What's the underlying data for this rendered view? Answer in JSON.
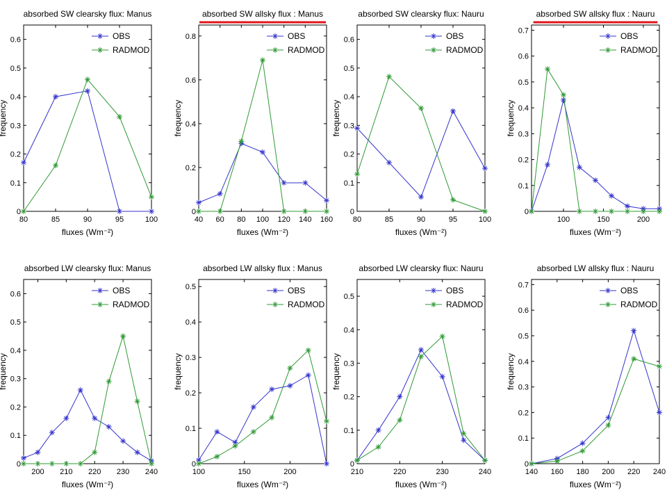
{
  "figure": {
    "background": "#ffffff",
    "highlight_color": "#e0141e"
  },
  "series_colors": {
    "OBS": "#3333cc",
    "RADMOD": "#2e9933"
  },
  "chart_data": [
    {
      "type": "line",
      "title": "absorbed SW clearsky flux: Manus",
      "title_highlighted": false,
      "xlabel": "fluxes (Wm⁻²)",
      "ylabel": "frequency",
      "xlim": [
        80,
        100
      ],
      "ylim": [
        0,
        0.65
      ],
      "xticks": [
        80,
        85,
        90,
        95,
        100
      ],
      "yticks": [
        0,
        0.1,
        0.2,
        0.3,
        0.4,
        0.5,
        0.6
      ],
      "tick_labels_x": [
        "80",
        "85",
        "90",
        "95",
        "100"
      ],
      "tick_labels_y": [
        "0",
        "0.1",
        "0.2",
        "0.3",
        "0.4",
        "0.5",
        "0.6"
      ],
      "legend": "top-right",
      "series": [
        {
          "name": "OBS",
          "x": [
            80,
            85,
            90,
            95,
            100
          ],
          "y": [
            0.17,
            0.4,
            0.42,
            0.0,
            0.0
          ]
        },
        {
          "name": "RADMOD",
          "x": [
            80,
            85,
            90,
            95,
            100
          ],
          "y": [
            0.0,
            0.16,
            0.46,
            0.33,
            0.05
          ]
        }
      ]
    },
    {
      "type": "line",
      "title": "absorbed SW allsky flux : Manus",
      "title_highlighted": true,
      "xlabel": "fluxes (Wm⁻²)",
      "ylabel": "frequency",
      "xlim": [
        40,
        160
      ],
      "ylim": [
        0,
        0.85
      ],
      "xticks": [
        40,
        60,
        80,
        100,
        120,
        140,
        160
      ],
      "yticks": [
        0,
        0.2,
        0.4,
        0.6,
        0.8
      ],
      "tick_labels_x": [
        "40",
        "60",
        "80",
        "100",
        "120",
        "140",
        "160"
      ],
      "tick_labels_y": [
        "0",
        "0.2",
        "0.4",
        "0.6",
        "0.8"
      ],
      "legend": "top-right",
      "series": [
        {
          "name": "OBS",
          "x": [
            40,
            60,
            80,
            100,
            120,
            140,
            160
          ],
          "y": [
            0.04,
            0.08,
            0.31,
            0.27,
            0.13,
            0.13,
            0.05
          ]
        },
        {
          "name": "RADMOD",
          "x": [
            40,
            60,
            80,
            100,
            120,
            140,
            160
          ],
          "y": [
            0.0,
            0.0,
            0.32,
            0.69,
            0.0,
            0.0,
            0.0
          ]
        }
      ]
    },
    {
      "type": "line",
      "title": "absorbed SW clearsky flux: Nauru",
      "title_highlighted": false,
      "xlabel": "fluxes (Wm⁻²)",
      "ylabel": "frequency",
      "xlim": [
        80,
        100
      ],
      "ylim": [
        0,
        0.65
      ],
      "xticks": [
        80,
        85,
        90,
        95,
        100
      ],
      "yticks": [
        0,
        0.1,
        0.2,
        0.3,
        0.4,
        0.5,
        0.6
      ],
      "tick_labels_x": [
        "80",
        "85",
        "90",
        "95",
        "100"
      ],
      "tick_labels_y": [
        "0",
        "0.1",
        "0.2",
        "0.3",
        "0.4",
        "0.5",
        "0.6"
      ],
      "legend": "top-right",
      "series": [
        {
          "name": "OBS",
          "x": [
            80,
            85,
            90,
            95,
            100
          ],
          "y": [
            0.29,
            0.17,
            0.05,
            0.35,
            0.15
          ]
        },
        {
          "name": "RADMOD",
          "x": [
            80,
            85,
            90,
            95,
            100
          ],
          "y": [
            0.13,
            0.47,
            0.36,
            0.04,
            0.0
          ]
        }
      ]
    },
    {
      "type": "line",
      "title": "absorbed SW allsky flux : Nauru",
      "title_highlighted": true,
      "xlabel": "fluxes (Wm⁻²)",
      "ylabel": "frequency",
      "xlim": [
        60,
        220
      ],
      "ylim": [
        0,
        0.72
      ],
      "xticks": [
        100,
        150,
        200
      ],
      "yticks": [
        0,
        0.1,
        0.2,
        0.3,
        0.4,
        0.5,
        0.6,
        0.7
      ],
      "tick_labels_x": [
        "100",
        "150",
        "200"
      ],
      "tick_labels_y": [
        "0",
        "0.1",
        "0.2",
        "0.3",
        "0.4",
        "0.5",
        "0.6",
        "0.7"
      ],
      "legend": "top-right",
      "series": [
        {
          "name": "OBS",
          "x": [
            60,
            80,
            100,
            120,
            140,
            160,
            180,
            200,
            220
          ],
          "y": [
            0.0,
            0.18,
            0.43,
            0.17,
            0.12,
            0.06,
            0.02,
            0.01,
            0.01
          ]
        },
        {
          "name": "RADMOD",
          "x": [
            60,
            80,
            100,
            120,
            140,
            160,
            180,
            200,
            220
          ],
          "y": [
            0.0,
            0.55,
            0.45,
            0.0,
            0.0,
            0.0,
            0.0,
            0.0,
            0.0
          ]
        }
      ]
    },
    {
      "type": "line",
      "title": "absorbed LW clearsky flux: Manus",
      "title_highlighted": false,
      "xlabel": "fluxes (Wm⁻²)",
      "ylabel": "frequency",
      "xlim": [
        195,
        240
      ],
      "ylim": [
        0,
        0.65
      ],
      "xticks": [
        200,
        210,
        220,
        230,
        240
      ],
      "yticks": [
        0,
        0.1,
        0.2,
        0.3,
        0.4,
        0.5,
        0.6
      ],
      "tick_labels_x": [
        "200",
        "210",
        "220",
        "230",
        "240"
      ],
      "tick_labels_y": [
        "0",
        "0.1",
        "0.2",
        "0.3",
        "0.4",
        "0.5",
        "0.6"
      ],
      "legend": "top-right",
      "series": [
        {
          "name": "OBS",
          "x": [
            195,
            200,
            205,
            210,
            215,
            220,
            225,
            230,
            235,
            240
          ],
          "y": [
            0.02,
            0.04,
            0.11,
            0.16,
            0.26,
            0.16,
            0.13,
            0.08,
            0.04,
            0.01
          ]
        },
        {
          "name": "RADMOD",
          "x": [
            195,
            200,
            205,
            210,
            215,
            220,
            225,
            230,
            235,
            240
          ],
          "y": [
            0.0,
            0.0,
            0.0,
            0.0,
            0.0,
            0.04,
            0.29,
            0.45,
            0.22,
            0.0
          ]
        }
      ]
    },
    {
      "type": "line",
      "title": "absorbed LW allsky flux : Manus",
      "title_highlighted": false,
      "xlabel": "fluxes (Wm⁻²)",
      "ylabel": "frequency",
      "xlim": [
        100,
        240
      ],
      "ylim": [
        0,
        0.52
      ],
      "xticks": [
        100,
        150,
        200
      ],
      "yticks": [
        0,
        0.1,
        0.2,
        0.3,
        0.4,
        0.5
      ],
      "tick_labels_x": [
        "100",
        "150",
        "200"
      ],
      "tick_labels_y": [
        "0",
        "0.1",
        "0.2",
        "0.3",
        "0.4",
        "0.5"
      ],
      "legend": "top-right",
      "series": [
        {
          "name": "OBS",
          "x": [
            100,
            120,
            140,
            160,
            180,
            200,
            220,
            240
          ],
          "y": [
            0.01,
            0.09,
            0.06,
            0.16,
            0.21,
            0.22,
            0.25,
            0.0
          ]
        },
        {
          "name": "RADMOD",
          "x": [
            100,
            120,
            140,
            160,
            180,
            200,
            220,
            240
          ],
          "y": [
            0.0,
            0.02,
            0.05,
            0.09,
            0.13,
            0.27,
            0.32,
            0.12
          ]
        }
      ]
    },
    {
      "type": "line",
      "title": "absorbed LW clearsky flux: Nauru",
      "title_highlighted": false,
      "xlabel": "fluxes (Wm⁻²)",
      "ylabel": "frequency",
      "xlim": [
        210,
        240
      ],
      "ylim": [
        0,
        0.55
      ],
      "xticks": [
        210,
        220,
        230,
        240
      ],
      "yticks": [
        0,
        0.1,
        0.2,
        0.3,
        0.4,
        0.5
      ],
      "tick_labels_x": [
        "210",
        "220",
        "230",
        "240"
      ],
      "tick_labels_y": [
        "0",
        "0.1",
        "0.2",
        "0.3",
        "0.4",
        "0.5"
      ],
      "legend": "top-right",
      "series": [
        {
          "name": "OBS",
          "x": [
            210,
            215,
            220,
            225,
            230,
            235,
            240
          ],
          "y": [
            0.01,
            0.1,
            0.2,
            0.34,
            0.26,
            0.07,
            0.01
          ]
        },
        {
          "name": "RADMOD",
          "x": [
            210,
            215,
            220,
            225,
            230,
            235,
            240
          ],
          "y": [
            0.01,
            0.05,
            0.13,
            0.32,
            0.38,
            0.09,
            0.01
          ]
        }
      ]
    },
    {
      "type": "line",
      "title": "absorbed LW allsky flux : Nauru",
      "title_highlighted": false,
      "xlabel": "fluxes (Wm⁻²)",
      "ylabel": "frequency",
      "xlim": [
        140,
        240
      ],
      "ylim": [
        0,
        0.72
      ],
      "xticks": [
        140,
        160,
        180,
        200,
        220,
        240
      ],
      "yticks": [
        0,
        0.1,
        0.2,
        0.3,
        0.4,
        0.5,
        0.6,
        0.7
      ],
      "tick_labels_x": [
        "140",
        "160",
        "180",
        "200",
        "220",
        "240"
      ],
      "tick_labels_y": [
        "0",
        "0.1",
        "0.2",
        "0.3",
        "0.4",
        "0.5",
        "0.6",
        "0.7"
      ],
      "legend": "top-right",
      "series": [
        {
          "name": "OBS",
          "x": [
            140,
            160,
            180,
            200,
            220,
            240
          ],
          "y": [
            0.0,
            0.02,
            0.08,
            0.18,
            0.52,
            0.2
          ]
        },
        {
          "name": "RADMOD",
          "x": [
            140,
            160,
            180,
            200,
            220,
            240
          ],
          "y": [
            0.0,
            0.01,
            0.05,
            0.15,
            0.41,
            0.38
          ]
        }
      ]
    }
  ]
}
